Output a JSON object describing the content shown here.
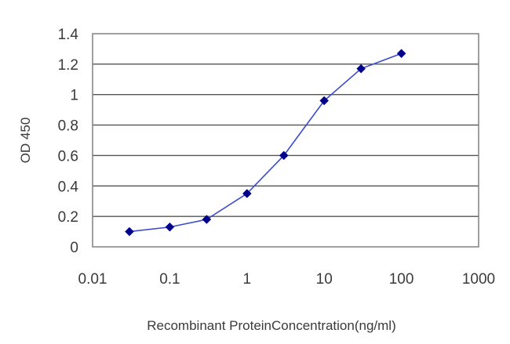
{
  "chart_data": {
    "type": "line",
    "xscale": "log",
    "xlabel": "Recombinant ProteinConcentration(ng/ml)",
    "ylabel": "OD 450",
    "xlim": [
      0.01,
      1000
    ],
    "ylim": [
      0,
      1.4
    ],
    "x_ticks": [
      0.01,
      0.1,
      1,
      10,
      100,
      1000
    ],
    "x_tick_labels": [
      "0.01",
      "0.1",
      "1",
      "10",
      "100",
      "1000"
    ],
    "y_ticks": [
      0,
      0.2,
      0.4,
      0.6,
      0.8,
      1,
      1.2,
      1.4
    ],
    "y_tick_labels": [
      "0",
      "0.2",
      "0.4",
      "0.6",
      "0.8",
      "1",
      "1.2",
      "1.4"
    ],
    "grid": "horizontal",
    "series": [
      {
        "x": [
          0.03,
          0.1,
          0.3,
          1,
          3,
          10,
          30,
          100
        ],
        "y": [
          0.1,
          0.13,
          0.18,
          0.35,
          0.6,
          0.96,
          1.17,
          1.27
        ],
        "color": "#00008b",
        "marker": "diamond"
      }
    ]
  }
}
